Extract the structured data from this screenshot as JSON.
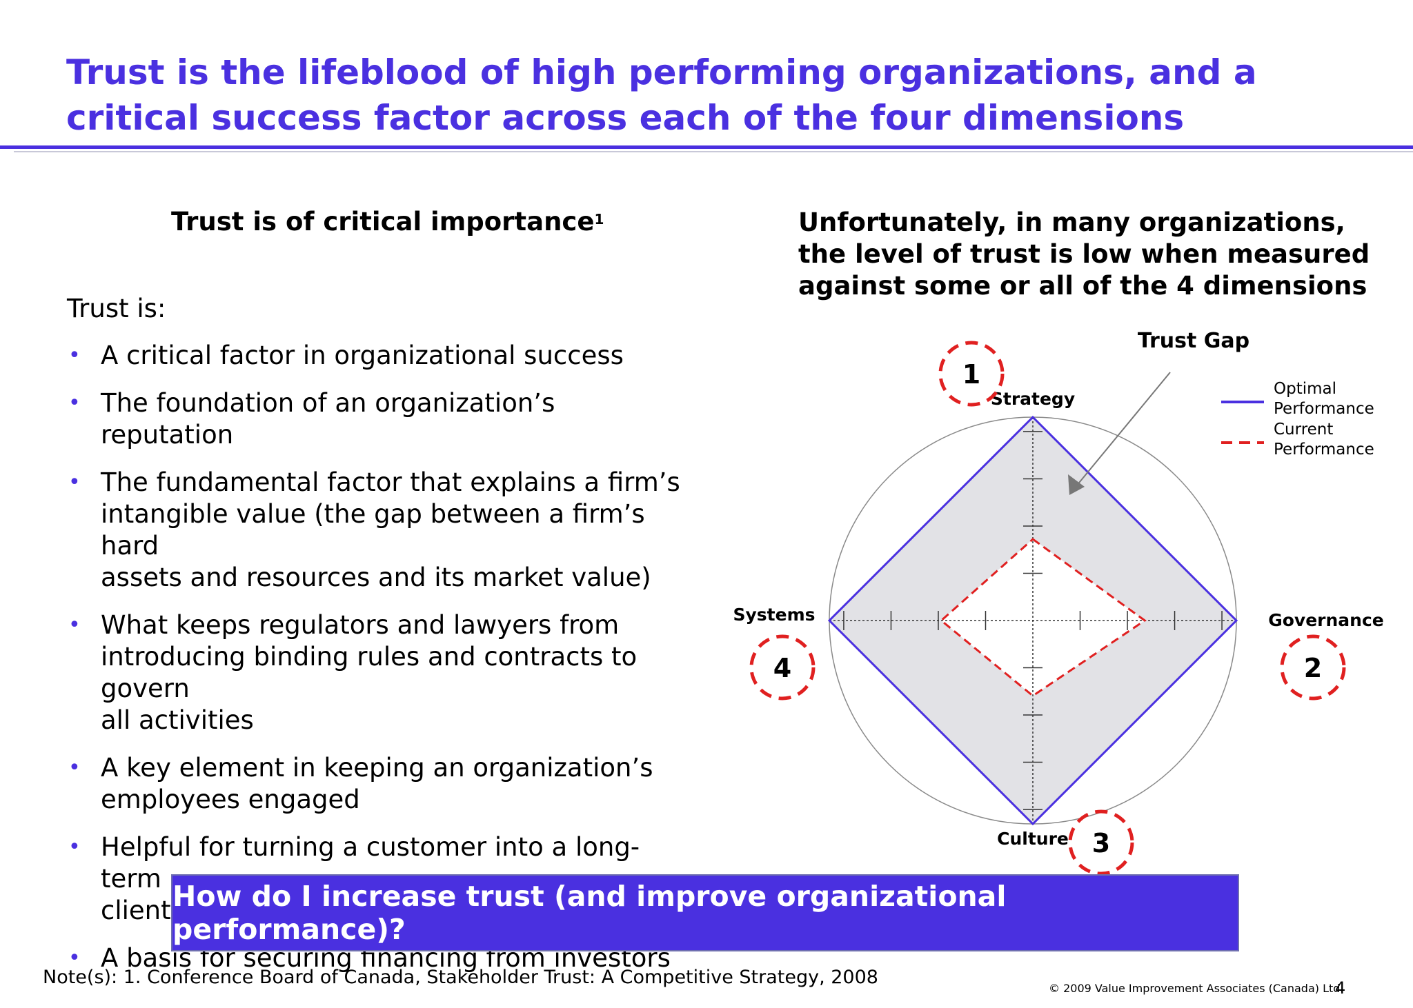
{
  "slide": {
    "title_line1": "Trust is the lifeblood of high performing organizations, and a",
    "title_line2": "critical success factor across each of the four dimensions"
  },
  "left": {
    "heading": "Trust is of critical importance",
    "heading_sup": "1",
    "intro": "Trust is:",
    "bullets": [
      [
        "A critical factor in organizational success"
      ],
      [
        "The foundation of an organization’s reputation"
      ],
      [
        "The fundamental factor that explains a firm’s",
        "intangible value (the gap between a firm’s hard",
        "assets and resources and its market value)"
      ],
      [
        "What keeps regulators and lawyers from",
        "introducing binding rules and contracts to govern",
        "all activities"
      ],
      [
        "A key element in keeping an organization’s",
        "employees engaged"
      ],
      [
        "Helpful for turning a customer into a long-term",
        "client, and for building loyalty"
      ],
      [
        "A basis for securing financing from investors"
      ]
    ]
  },
  "right": {
    "heading_lines": [
      "Unfortunately, in many organizations,",
      "the level of trust is low when measured",
      "against some or all of the 4 dimensions"
    ]
  },
  "chart_data": {
    "type": "radar",
    "axes": [
      "Strategy",
      "Governance",
      "Culture",
      "Systems"
    ],
    "axis_numbers": [
      "1",
      "2",
      "3",
      "4"
    ],
    "series": [
      {
        "name": "Optimal Performance",
        "values": [
          1.0,
          1.0,
          1.0,
          1.0
        ],
        "color": "#4a30e0",
        "style": "solid"
      },
      {
        "name": "Current Performance",
        "values": [
          0.4,
          0.55,
          0.37,
          0.45
        ],
        "color": "#e02020",
        "style": "dashed"
      }
    ],
    "legend": [
      {
        "lines": [
          "Optimal",
          "Performance"
        ],
        "style": "solid",
        "color": "#4a30e0"
      },
      {
        "lines": [
          "Current",
          "Performance"
        ],
        "style": "dashed",
        "color": "#e02020"
      }
    ],
    "legend_position": "top-right",
    "annotation": "Trust Gap",
    "gap_fill": "#e2e2e6",
    "outer_circle": true
  },
  "cta": {
    "text": "How do I increase trust (and improve organizational performance)?"
  },
  "footer": {
    "note": "Note(s):  1. Conference Board of Canada, Stakeholder Trust: A Competitive Strategy, 2008",
    "copyright": "© 2009 Value Improvement Associates (Canada) Ltd.",
    "page": "4"
  }
}
